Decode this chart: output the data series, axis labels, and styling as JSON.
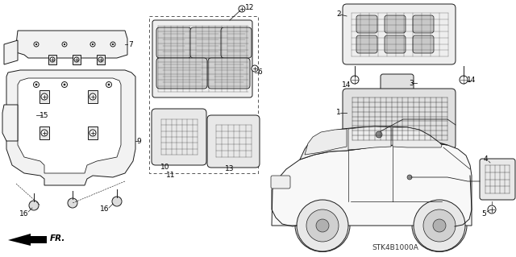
{
  "background_color": "#ffffff",
  "diagram_code": "STK4B1000A",
  "fr_label": "FR.",
  "fig_width": 6.4,
  "fig_height": 3.19,
  "dpi": 100,
  "lc": "#1a1a1a",
  "lw": 0.7
}
